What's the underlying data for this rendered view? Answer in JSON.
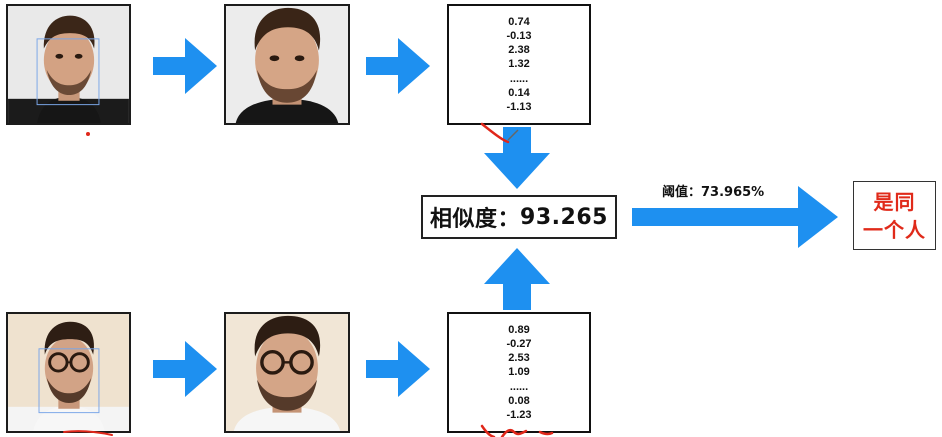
{
  "top_vector": [
    "0.74",
    "-0.13",
    "2.38",
    "1.32",
    "......",
    "0.14",
    "-1.13"
  ],
  "bottom_vector": [
    "0.89",
    "-0.27",
    "2.53",
    "1.09",
    "......",
    "0.08",
    "-1.23"
  ],
  "similarity": {
    "label": "相似度：",
    "value": "93.265"
  },
  "threshold": {
    "label": "阈值：",
    "value": "73.965%"
  },
  "result": {
    "line1": "是同",
    "line2": "一个人"
  },
  "colors": {
    "arrow": "#1e90f0",
    "result_text": "#e02a1a",
    "annotation": "#e0271a",
    "border": "#1c1c1c"
  },
  "icons": {
    "face_top": "man-face-portrait-icon",
    "face_bottom": "man-with-glasses-portrait-icon"
  }
}
